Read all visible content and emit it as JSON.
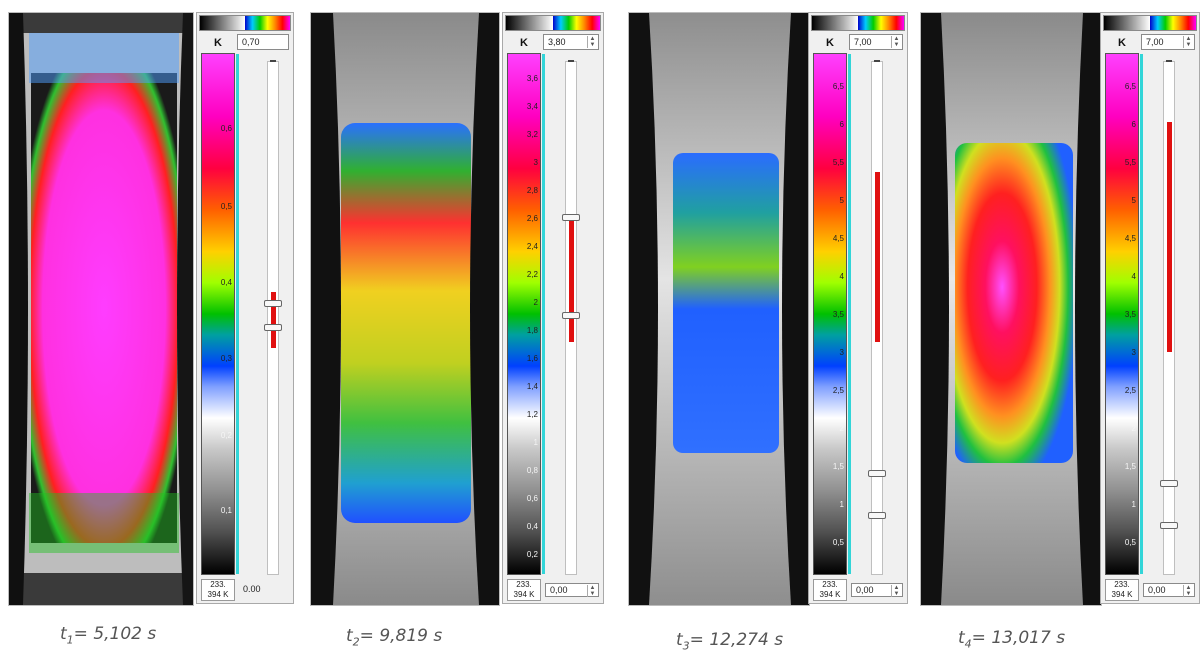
{
  "panels": [
    {
      "id": "t1",
      "caption_prefix": "t",
      "caption_sub": "1",
      "caption_value": "= 5,102 s",
      "unit": "K",
      "max_value": "0,70",
      "min_value": "0.00",
      "min_label_1": "233.",
      "min_label_2": "394 K",
      "scale_labels": [
        "0,6",
        "0,5",
        "0,4",
        "0,3",
        "0,2",
        "0,1"
      ],
      "range": [
        0.33,
        0.39
      ]
    },
    {
      "id": "t2",
      "caption_prefix": "t",
      "caption_sub": "2",
      "caption_value": "= 9,819 s",
      "unit": "K",
      "max_value": "3,80",
      "min_value": "0,00",
      "min_label_1": "233.",
      "min_label_2": "394 K",
      "scale_labels": [
        "3,6",
        "3,4",
        "3,2",
        "3",
        "2,8",
        "2,6",
        "2,4",
        "2,2",
        "2",
        "1,8",
        "1,6",
        "1,4",
        "1,2",
        "1",
        "0,8",
        "0,6",
        "0,4",
        "0,2"
      ],
      "range": [
        1.7,
        2.6
      ]
    },
    {
      "id": "t3",
      "caption_prefix": "t",
      "caption_sub": "3",
      "caption_value": "= 12,274 s",
      "unit": "K",
      "max_value": "7,00",
      "min_value": "0,00",
      "min_label_1": "233.",
      "min_label_2": "394 K",
      "scale_labels": [
        "6,5",
        "6",
        "5,5",
        "5",
        "4,5",
        "4",
        "3,5",
        "3",
        "2,5",
        "2",
        "1,5",
        "1",
        "0,5"
      ],
      "range": [
        3.1,
        5.4
      ]
    },
    {
      "id": "t4",
      "caption_prefix": "t",
      "caption_sub": "4",
      "caption_value": "= 13,017 s",
      "unit": "K",
      "max_value": "7,00",
      "min_value": "0,00",
      "min_label_1": "233.",
      "min_label_2": "394 K",
      "scale_labels": [
        "6,5",
        "6",
        "5,5",
        "5",
        "4,5",
        "4",
        "3,5",
        "3",
        "2,5",
        "2",
        "1,5",
        "1",
        "0,5"
      ],
      "range": [
        3.1,
        6.2
      ]
    }
  ],
  "colors": {
    "range_bar": "#e01010",
    "scale_edge": "#32d5d8"
  }
}
